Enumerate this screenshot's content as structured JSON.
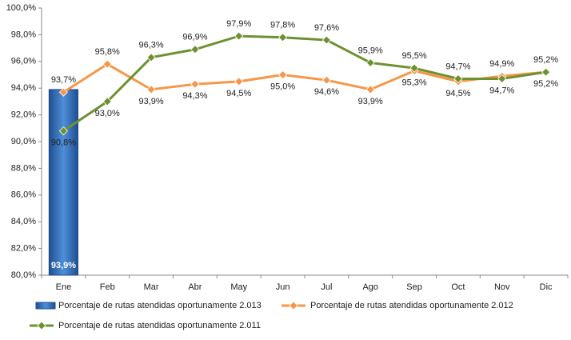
{
  "chart_data": {
    "type": "bar_line",
    "categories": [
      "Ene",
      "Feb",
      "Mar",
      "Abr",
      "May",
      "Jun",
      "Jul",
      "Ago",
      "Sep",
      "Oct",
      "Nov",
      "Dic"
    ],
    "series": [
      {
        "name": "Porcentaje de rutas atendidas oportunamente 2.013",
        "type": "bar",
        "color": "#2f6fb8",
        "values": [
          93.9,
          null,
          null,
          null,
          null,
          null,
          null,
          null,
          null,
          null,
          null,
          null
        ],
        "value_labels": [
          "93,9%",
          null,
          null,
          null,
          null,
          null,
          null,
          null,
          null,
          null,
          null,
          null
        ]
      },
      {
        "name": "Porcentaje de rutas atendidas oportunamente 2.012",
        "type": "line",
        "color": "#f79646",
        "values": [
          93.7,
          95.8,
          93.9,
          94.3,
          94.5,
          95.0,
          94.6,
          93.9,
          95.3,
          94.5,
          94.9,
          95.2
        ],
        "value_labels": [
          "93,7%",
          "95,8%",
          "93,9%",
          "94,3%",
          "94,5%",
          "95,0%",
          "94,6%",
          "93,9%",
          "95,3%",
          "94,5%",
          "94,9%",
          "95,2%"
        ]
      },
      {
        "name": "Porcentaje de rutas atendidas oportunamente 2.011",
        "type": "line",
        "color": "#6e9130",
        "values": [
          90.8,
          93.0,
          96.3,
          96.9,
          97.9,
          97.8,
          97.6,
          95.9,
          95.5,
          94.7,
          94.7,
          95.2
        ],
        "value_labels": [
          "90,8%",
          "93,0%",
          "96,3%",
          "96,9%",
          "97,9%",
          "97,8%",
          "97,6%",
          "95,9%",
          "95,5%",
          "94,7%",
          "94,7%",
          "95,2%"
        ]
      }
    ],
    "ylim": [
      80,
      100
    ],
    "yticks": [
      {
        "value": 80,
        "label": "80,0%"
      },
      {
        "value": 82,
        "label": "82,0%"
      },
      {
        "value": 84,
        "label": "84,0%"
      },
      {
        "value": 86,
        "label": "86,0%"
      },
      {
        "value": 88,
        "label": "88,0%"
      },
      {
        "value": 90,
        "label": "90,0%"
      },
      {
        "value": 92,
        "label": "92,0%"
      },
      {
        "value": 94,
        "label": "94,0%"
      },
      {
        "value": 96,
        "label": "96,0%"
      },
      {
        "value": 98,
        "label": "98,0%"
      },
      {
        "value": 100,
        "label": "100,0%"
      }
    ],
    "grid": false
  }
}
